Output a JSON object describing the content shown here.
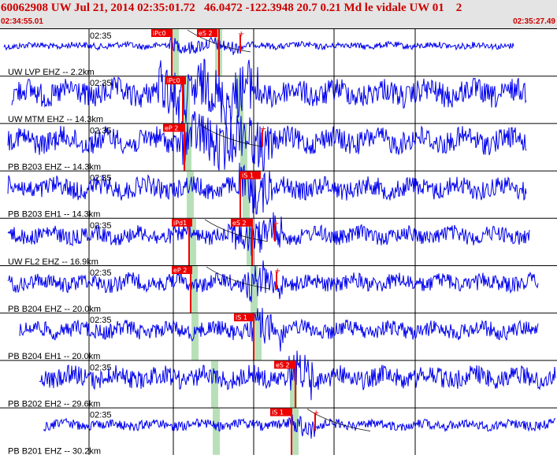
{
  "header": {
    "title": "60062908 UW Jul 21, 2014 02:35:01.72   46.0472 -122.3948 20.7 0.21 Md le vidale UW 01    2",
    "start_time": "02:34:55.01",
    "end_time": "02:35:27.49"
  },
  "colors": {
    "header_bg": "#e4e4e4",
    "title": "#cc0000",
    "trace": "#0000ee",
    "pick_label_bg": "#ee0000",
    "pick_line": "#ee0000",
    "pick_window": "#b8e0b8",
    "grid": "#000000"
  },
  "traces": [
    {
      "label": "UW LVP EHZ -- 2.2km",
      "time": "02:35",
      "picks": [
        {
          "text": "iPc0"
        },
        {
          "text": "eS 2"
        }
      ]
    },
    {
      "label": "UW MTM EHZ -- 14.3km",
      "time": "02:35",
      "picks": [
        {
          "text": "iPc0"
        }
      ]
    },
    {
      "label": "PB B203 EHZ -- 14.3km",
      "time": "02:35",
      "picks": [
        {
          "text": "eP 2"
        }
      ]
    },
    {
      "label": "PB B203 EH1 -- 14.3km",
      "time": "02:35",
      "picks": [
        {
          "text": "iS 1"
        }
      ]
    },
    {
      "label": "UW FL2 EHZ -- 16.9km",
      "time": "02:35",
      "picks": [
        {
          "text": "iPd1"
        },
        {
          "text": "eS 2"
        }
      ]
    },
    {
      "label": "PB B204 EHZ -- 20.0km",
      "time": "02:35",
      "picks": [
        {
          "text": "eP 2"
        }
      ]
    },
    {
      "label": "PB B204 EH1 -- 20.0km",
      "time": "02:35",
      "picks": [
        {
          "text": "iS 1"
        }
      ]
    },
    {
      "label": "PB B202 EH2 -- 29.6km",
      "time": "02:35",
      "picks": [
        {
          "text": "eS 2"
        }
      ]
    },
    {
      "label": "PB B201 EHZ -- 30.2km",
      "time": "02:35",
      "picks": [
        {
          "text": "iS 1"
        }
      ]
    }
  ]
}
